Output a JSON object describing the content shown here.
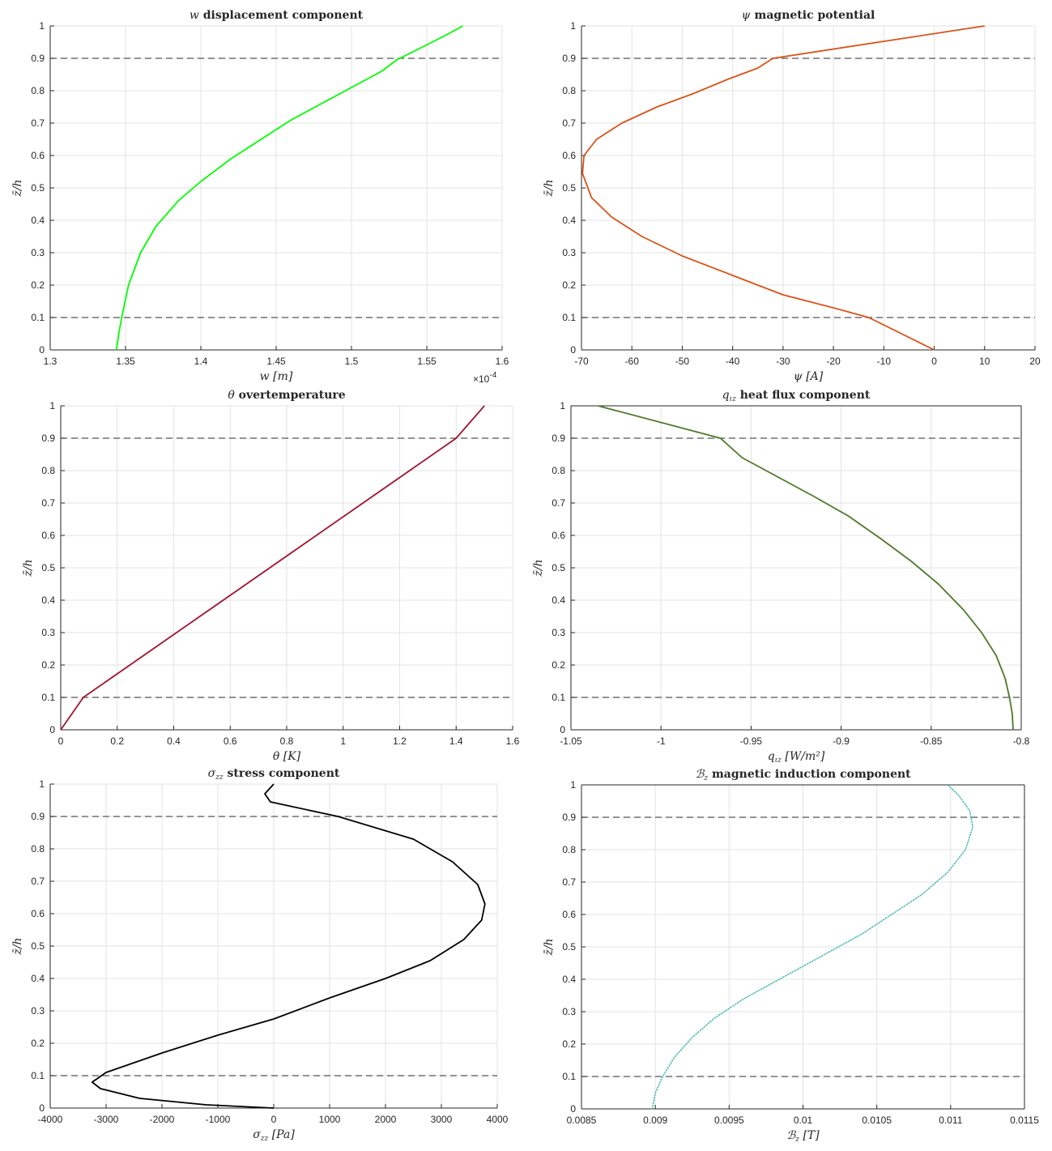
{
  "chart_data": [
    {
      "type": "line",
      "title_math": "w",
      "title_text": "displacement component",
      "xlabel_math": "w",
      "xlabel_unit": "[m]",
      "ylabel": "z̄/h",
      "xlim": [
        1.3,
        1.6
      ],
      "ylim": [
        0,
        1
      ],
      "xticks": [
        1.3,
        1.35,
        1.4,
        1.45,
        1.5,
        1.55,
        1.6
      ],
      "xticklabels": [
        "1.3",
        "1.35",
        "1.4",
        "1.45",
        "1.5",
        "1.55",
        "1.6"
      ],
      "yticks": [
        0,
        0.1,
        0.2,
        0.3,
        0.4,
        0.5,
        0.6,
        0.7,
        0.8,
        0.9,
        1
      ],
      "yticklabels": [
        "0",
        "0.1",
        "0.2",
        "0.3",
        "0.4",
        "0.5",
        "0.6",
        "0.7",
        "0.8",
        "0.9",
        "1"
      ],
      "x_multiplier": "×10",
      "x_multiplier_exp": "-4",
      "grid": true,
      "box": false,
      "hlines": [
        0.1,
        0.9
      ],
      "series": [
        {
          "color": "#00ff00",
          "style": "solid",
          "x": [
            1.344,
            1.3455,
            1.3475,
            1.352,
            1.36,
            1.37,
            1.385,
            1.4,
            1.42,
            1.44,
            1.46,
            1.48,
            1.5,
            1.52,
            1.53,
            1.545,
            1.56,
            1.574
          ],
          "y": [
            0.0,
            0.05,
            0.1,
            0.2,
            0.3,
            0.38,
            0.46,
            0.52,
            0.59,
            0.65,
            0.71,
            0.76,
            0.81,
            0.86,
            0.895,
            0.93,
            0.965,
            1.0
          ]
        }
      ]
    },
    {
      "type": "line",
      "title_math": "ψ",
      "title_text": "magnetic potential",
      "xlabel_math": "ψ",
      "xlabel_unit": "[A]",
      "ylabel": "z̄/h",
      "xlim": [
        -70,
        20
      ],
      "ylim": [
        0,
        1
      ],
      "xticks": [
        -70,
        -60,
        -50,
        -40,
        -30,
        -20,
        -10,
        0,
        10,
        20
      ],
      "xticklabels": [
        "-70",
        "-60",
        "-50",
        "-40",
        "-30",
        "-20",
        "-10",
        "0",
        "10",
        "20"
      ],
      "yticks": [
        0,
        0.1,
        0.2,
        0.3,
        0.4,
        0.5,
        0.6,
        0.7,
        0.8,
        0.9,
        1
      ],
      "yticklabels": [
        "0",
        "0.1",
        "0.2",
        "0.3",
        "0.4",
        "0.5",
        "0.6",
        "0.7",
        "0.8",
        "0.9",
        "1"
      ],
      "grid": true,
      "box": false,
      "hlines": [
        0.1,
        0.9
      ],
      "series": [
        {
          "color": "#d95319",
          "style": "solid",
          "x": [
            0,
            -13,
            -20,
            -30,
            -40,
            -50,
            -58,
            -64,
            -68,
            -69.8,
            -69.5,
            -67,
            -62,
            -55,
            -48,
            -41,
            -35,
            -32,
            10
          ],
          "y": [
            0,
            0.1,
            0.13,
            0.17,
            0.23,
            0.29,
            0.35,
            0.41,
            0.47,
            0.545,
            0.6,
            0.65,
            0.7,
            0.75,
            0.79,
            0.835,
            0.87,
            0.9,
            1.0
          ]
        }
      ]
    },
    {
      "type": "line",
      "title_math": "θ",
      "title_text": "overtemperature",
      "xlabel_math": "θ",
      "xlabel_unit": "[K]",
      "ylabel": "z̄/h",
      "xlim": [
        0,
        1.6
      ],
      "ylim": [
        0,
        1
      ],
      "xticks": [
        0,
        0.2,
        0.4,
        0.6,
        0.8,
        1,
        1.2,
        1.4,
        1.6
      ],
      "xticklabels": [
        "0",
        "0.2",
        "0.4",
        "0.6",
        "0.8",
        "1",
        "1.2",
        "1.4",
        "1.6"
      ],
      "yticks": [
        0,
        0.1,
        0.2,
        0.3,
        0.4,
        0.5,
        0.6,
        0.7,
        0.8,
        0.9,
        1
      ],
      "yticklabels": [
        "0",
        "0.1",
        "0.2",
        "0.3",
        "0.4",
        "0.5",
        "0.6",
        "0.7",
        "0.8",
        "0.9",
        "1"
      ],
      "grid": true,
      "box": false,
      "hlines": [
        0.1,
        0.9
      ],
      "series": [
        {
          "color": "#a2142f",
          "style": "solid",
          "x": [
            0,
            0.08,
            1.4,
            1.5
          ],
          "y": [
            0,
            0.1,
            0.9,
            1.0
          ]
        }
      ]
    },
    {
      "type": "line",
      "title_math": "q",
      "title_sub": "ιz",
      "title_text": "heat flux component",
      "xlabel_math": "q",
      "xlabel_sub": "ιz",
      "xlabel_unit": "[W/m²]",
      "ylabel": "z̄/h",
      "xlim": [
        -1.05,
        -0.8
      ],
      "ylim": [
        0,
        1
      ],
      "xticks": [
        -1.05,
        -1,
        -0.95,
        -0.9,
        -0.85,
        -0.8
      ],
      "xticklabels": [
        "-1.05",
        "-1",
        "-0.95",
        "-0.9",
        "-0.85",
        "-0.8"
      ],
      "yticks": [
        0,
        0.1,
        0.2,
        0.3,
        0.4,
        0.5,
        0.6,
        0.7,
        0.8,
        0.9,
        1
      ],
      "yticklabels": [
        "0",
        "0.1",
        "0.2",
        "0.3",
        "0.4",
        "0.5",
        "0.6",
        "0.7",
        "0.8",
        "0.9",
        "1"
      ],
      "grid": true,
      "box": true,
      "hlines": [
        0.1,
        0.9
      ],
      "series": [
        {
          "color": "#4d7a2a",
          "style": "solid",
          "x": [
            -0.8045,
            -0.805,
            -0.8065,
            -0.809,
            -0.814,
            -0.822,
            -0.832,
            -0.846,
            -0.861,
            -0.878,
            -0.896,
            -0.915,
            -0.935,
            -0.955,
            -0.967,
            -1.035
          ],
          "y": [
            0.0,
            0.05,
            0.1,
            0.16,
            0.23,
            0.3,
            0.37,
            0.45,
            0.52,
            0.59,
            0.66,
            0.72,
            0.78,
            0.84,
            0.9,
            1.0
          ]
        }
      ]
    },
    {
      "type": "line",
      "title_math": "σ",
      "title_sub": "zz",
      "title_text": "stress component",
      "xlabel_math": "σ",
      "xlabel_sub": "zz",
      "xlabel_unit": "[Pa]",
      "ylabel": "z̄/h",
      "xlim": [
        -4000,
        4000
      ],
      "ylim": [
        0,
        1
      ],
      "xticks": [
        -4000,
        -3000,
        -2000,
        -1000,
        0,
        1000,
        2000,
        3000,
        4000
      ],
      "xticklabels": [
        "-4000",
        "-3000",
        "-2000",
        "-1000",
        "0",
        "1000",
        "2000",
        "3000",
        "4000"
      ],
      "yticks": [
        0,
        0.1,
        0.2,
        0.3,
        0.4,
        0.5,
        0.6,
        0.7,
        0.8,
        0.9,
        1
      ],
      "yticklabels": [
        "0",
        "0.1",
        "0.2",
        "0.3",
        "0.4",
        "0.5",
        "0.6",
        "0.7",
        "0.8",
        "0.9",
        "1"
      ],
      "grid": true,
      "box": false,
      "hlines": [
        0.1,
        0.9
      ],
      "series": [
        {
          "color": "#000000",
          "style": "solid",
          "x": [
            0,
            -1200,
            -2400,
            -3100,
            -3250,
            -3000,
            -2000,
            -1000,
            0,
            1000,
            2000,
            2800,
            3400,
            3720,
            3780,
            3650,
            3200,
            2500,
            1150,
            -60,
            -160,
            0
          ],
          "y": [
            0,
            0.01,
            0.03,
            0.06,
            0.08,
            0.11,
            0.17,
            0.225,
            0.275,
            0.34,
            0.4,
            0.455,
            0.52,
            0.58,
            0.63,
            0.69,
            0.76,
            0.83,
            0.9,
            0.945,
            0.97,
            1.0
          ]
        }
      ]
    },
    {
      "type": "line",
      "title_math": "ℬ",
      "title_sub": "z",
      "title_text": "magnetic induction component",
      "xlabel_math": "ℬ",
      "xlabel_sub": "z",
      "xlabel_unit": "[T]",
      "ylabel": "z̄/h",
      "xlim": [
        0.0085,
        0.0115
      ],
      "ylim": [
        0,
        1
      ],
      "xticks": [
        0.0085,
        0.009,
        0.0095,
        0.01,
        0.0105,
        0.011,
        0.0115
      ],
      "xticklabels": [
        "0.0085",
        "0.009",
        "0.0095",
        "0.01",
        "0.0105",
        "0.011",
        "0.0115"
      ],
      "yticks": [
        0,
        0.1,
        0.2,
        0.3,
        0.4,
        0.5,
        0.6,
        0.7,
        0.8,
        0.9,
        1
      ],
      "yticklabels": [
        "0",
        "0.1",
        "0.2",
        "0.3",
        "0.4",
        "0.5",
        "0.6",
        "0.7",
        "0.8",
        "0.9",
        "1"
      ],
      "grid": true,
      "box": true,
      "hlines": [
        0.1,
        0.9
      ],
      "series": [
        {
          "color": "#4dbeb0",
          "style": "dotted",
          "x": [
            0.00898,
            0.009,
            0.00905,
            0.00913,
            0.00925,
            0.0094,
            0.0096,
            0.0098,
            0.01,
            0.0102,
            0.0104,
            0.0106,
            0.0108,
            0.01098,
            0.0111,
            0.01115,
            0.01113,
            0.01105,
            0.01098
          ],
          "y": [
            0.0,
            0.05,
            0.1,
            0.16,
            0.22,
            0.28,
            0.34,
            0.39,
            0.44,
            0.49,
            0.54,
            0.6,
            0.66,
            0.73,
            0.8,
            0.87,
            0.92,
            0.97,
            1.0
          ]
        }
      ]
    }
  ]
}
